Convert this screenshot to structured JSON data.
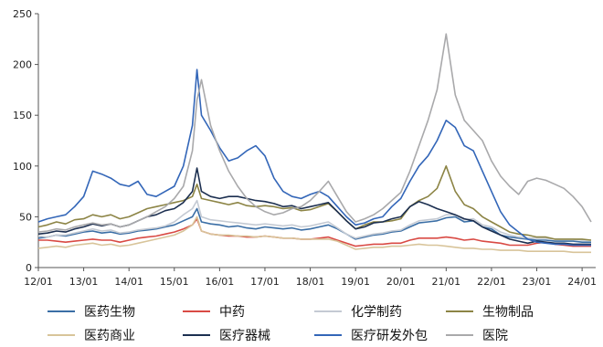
{
  "chart_data": {
    "type": "line",
    "ylim": [
      0,
      250
    ],
    "y_ticks": [
      "0",
      "50",
      "100",
      "150",
      "200",
      "250"
    ],
    "x_ticks": [
      "12/01",
      "13/01",
      "14/01",
      "15/01",
      "16/01",
      "17/01",
      "18/01",
      "19/01",
      "20/01",
      "21/01",
      "22/01",
      "23/01",
      "24/01"
    ],
    "xlim": [
      2012.0,
      2024.3
    ],
    "grid": false,
    "legend_position": "bottom",
    "x": [
      2012.0,
      2012.2,
      2012.4,
      2012.6,
      2012.8,
      2013.0,
      2013.2,
      2013.4,
      2013.6,
      2013.8,
      2014.0,
      2014.2,
      2014.4,
      2014.6,
      2014.8,
      2015.0,
      2015.2,
      2015.4,
      2015.5,
      2015.6,
      2015.8,
      2016.0,
      2016.2,
      2016.4,
      2016.6,
      2016.8,
      2017.0,
      2017.2,
      2017.4,
      2017.6,
      2017.8,
      2018.0,
      2018.2,
      2018.4,
      2018.6,
      2018.8,
      2019.0,
      2019.2,
      2019.4,
      2019.6,
      2019.8,
      2020.0,
      2020.2,
      2020.4,
      2020.6,
      2020.8,
      2021.0,
      2021.2,
      2021.4,
      2021.6,
      2021.8,
      2022.0,
      2022.2,
      2022.4,
      2022.6,
      2022.8,
      2023.0,
      2023.2,
      2023.4,
      2023.6,
      2023.8,
      2024.0,
      2024.2
    ],
    "series": [
      {
        "name": "医药生物",
        "color": "#3a6ea5",
        "values": [
          29,
          30,
          32,
          31,
          33,
          35,
          36,
          34,
          35,
          33,
          34,
          36,
          37,
          38,
          40,
          42,
          46,
          50,
          58,
          45,
          43,
          42,
          40,
          41,
          39,
          38,
          40,
          39,
          38,
          39,
          37,
          38,
          40,
          42,
          38,
          33,
          28,
          30,
          32,
          33,
          35,
          36,
          40,
          44,
          45,
          46,
          49,
          50,
          45,
          46,
          40,
          38,
          32,
          30,
          29,
          28,
          27,
          27,
          26,
          26,
          26,
          25,
          25
        ]
      },
      {
        "name": "中药",
        "color": "#d94a44",
        "values": [
          27,
          27,
          26,
          25,
          26,
          27,
          28,
          27,
          27,
          25,
          27,
          29,
          30,
          31,
          33,
          35,
          38,
          42,
          48,
          36,
          33,
          32,
          31,
          31,
          30,
          30,
          31,
          30,
          29,
          29,
          28,
          28,
          29,
          30,
          27,
          24,
          21,
          22,
          23,
          23,
          24,
          24,
          27,
          29,
          29,
          29,
          30,
          29,
          27,
          28,
          26,
          25,
          24,
          22,
          22,
          22,
          24,
          25,
          23,
          22,
          21,
          21,
          21
        ]
      },
      {
        "name": "化学制药",
        "color": "#c4cad3",
        "values": [
          31,
          30,
          32,
          32,
          34,
          36,
          38,
          36,
          37,
          34,
          35,
          37,
          38,
          39,
          41,
          45,
          52,
          58,
          66,
          50,
          47,
          46,
          45,
          44,
          43,
          42,
          43,
          42,
          41,
          42,
          40,
          41,
          43,
          45,
          39,
          33,
          29,
          31,
          33,
          34,
          36,
          37,
          42,
          46,
          47,
          48,
          52,
          52,
          47,
          48,
          42,
          40,
          35,
          32,
          30,
          29,
          29,
          29,
          28,
          28,
          28,
          27,
          27
        ]
      },
      {
        "name": "生物制品",
        "color": "#8c8445",
        "values": [
          40,
          42,
          45,
          43,
          47,
          48,
          52,
          50,
          52,
          48,
          50,
          54,
          58,
          60,
          62,
          64,
          66,
          70,
          82,
          68,
          66,
          64,
          62,
          64,
          61,
          60,
          61,
          60,
          58,
          59,
          56,
          57,
          60,
          63,
          55,
          46,
          38,
          42,
          45,
          45,
          46,
          48,
          60,
          66,
          70,
          78,
          100,
          75,
          62,
          58,
          50,
          45,
          40,
          35,
          33,
          32,
          30,
          30,
          28,
          28,
          28,
          28,
          27
        ]
      },
      {
        "name": "医药商业",
        "color": "#d8c49a",
        "values": [
          19,
          20,
          21,
          20,
          22,
          23,
          24,
          22,
          23,
          21,
          22,
          24,
          26,
          28,
          30,
          32,
          36,
          42,
          50,
          36,
          33,
          32,
          32,
          31,
          31,
          30,
          31,
          30,
          29,
          29,
          28,
          28,
          28,
          28,
          26,
          22,
          18,
          19,
          20,
          20,
          21,
          21,
          22,
          23,
          22,
          22,
          21,
          20,
          19,
          19,
          18,
          18,
          17,
          17,
          17,
          16,
          16,
          16,
          16,
          16,
          15,
          15,
          15
        ]
      },
      {
        "name": "医疗器械",
        "color": "#1c2f50",
        "values": [
          33,
          34,
          36,
          35,
          38,
          40,
          43,
          41,
          43,
          40,
          42,
          46,
          50,
          52,
          56,
          58,
          64,
          75,
          98,
          75,
          70,
          68,
          70,
          70,
          68,
          66,
          65,
          63,
          60,
          61,
          58,
          60,
          62,
          64,
          55,
          46,
          38,
          40,
          44,
          45,
          48,
          50,
          60,
          65,
          62,
          58,
          55,
          52,
          48,
          46,
          40,
          36,
          32,
          28,
          26,
          24,
          26,
          25,
          24,
          24,
          23,
          23,
          23
        ]
      },
      {
        "name": "医疗研发外包",
        "color": "#3366b8",
        "values": [
          45,
          48,
          50,
          52,
          60,
          70,
          95,
          92,
          88,
          82,
          80,
          85,
          72,
          70,
          75,
          80,
          100,
          140,
          195,
          150,
          135,
          118,
          105,
          108,
          115,
          120,
          110,
          88,
          75,
          70,
          68,
          72,
          75,
          70,
          60,
          50,
          42,
          44,
          48,
          50,
          60,
          68,
          85,
          100,
          110,
          125,
          145,
          138,
          120,
          115,
          95,
          75,
          55,
          42,
          35,
          28,
          25,
          24,
          23,
          23,
          22,
          22,
          22
        ]
      },
      {
        "name": "医院",
        "color": "#a9a9ab",
        "values": [
          35,
          36,
          38,
          37,
          40,
          42,
          44,
          42,
          43,
          40,
          42,
          46,
          50,
          55,
          60,
          68,
          80,
          115,
          165,
          185,
          140,
          115,
          95,
          80,
          68,
          60,
          55,
          52,
          54,
          58,
          60,
          66,
          75,
          85,
          70,
          55,
          45,
          48,
          52,
          58,
          66,
          74,
          95,
          120,
          145,
          175,
          230,
          170,
          145,
          135,
          125,
          105,
          90,
          80,
          72,
          85,
          88,
          86,
          82,
          78,
          70,
          60,
          45
        ]
      }
    ]
  }
}
